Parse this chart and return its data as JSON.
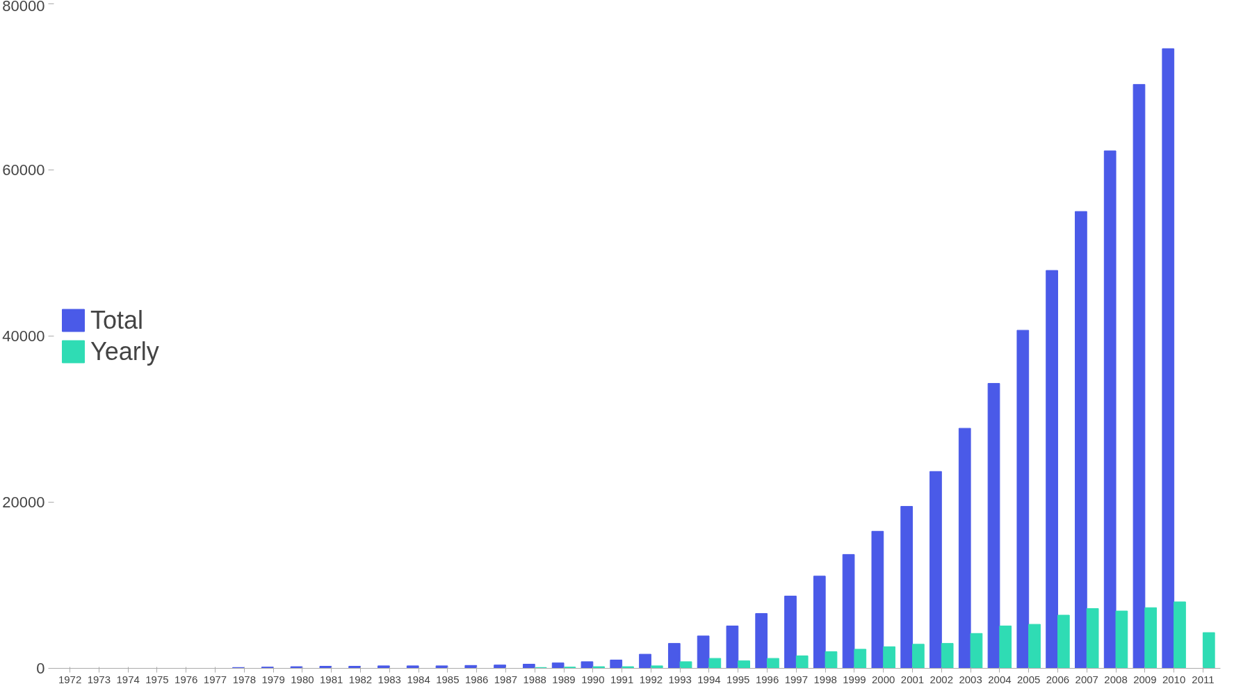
{
  "chart_data": {
    "type": "bar",
    "categories": [
      "1972",
      "1973",
      "1974",
      "1975",
      "1976",
      "1977",
      "1978",
      "1979",
      "1980",
      "1981",
      "1982",
      "1983",
      "1984",
      "1985",
      "1986",
      "1987",
      "1988",
      "1989",
      "1990",
      "1991",
      "1992",
      "1993",
      "1994",
      "1995",
      "1996",
      "1997",
      "1998",
      "1999",
      "2000",
      "2001",
      "2002",
      "2003",
      "2004",
      "2005",
      "2006",
      "2007",
      "2008",
      "2009",
      "2010",
      "2011"
    ],
    "series": [
      {
        "name": "Total",
        "color": "#4a5ae8",
        "values": [
          0,
          0,
          0,
          0,
          0,
          0,
          100,
          150,
          200,
          250,
          250,
          300,
          300,
          300,
          350,
          400,
          500,
          650,
          800,
          1000,
          1700,
          3000,
          3900,
          5100,
          6600,
          8700,
          11100,
          13700,
          16500,
          19500,
          23700,
          28900,
          34300,
          40700,
          47900,
          55000,
          62300,
          70300,
          74600,
          null
        ]
      },
      {
        "name": "Yearly",
        "color": "#2fdcb4",
        "values": [
          0,
          0,
          0,
          0,
          0,
          0,
          0,
          0,
          0,
          0,
          0,
          0,
          0,
          0,
          0,
          0,
          100,
          150,
          200,
          200,
          300,
          800,
          1200,
          900,
          1200,
          1500,
          2000,
          2300,
          2600,
          2900,
          3000,
          4200,
          5100,
          5300,
          6400,
          7200,
          6900,
          7300,
          8000,
          4300
        ]
      }
    ],
    "ylim": [
      0,
      80000
    ],
    "yticks": [
      0,
      20000,
      40000,
      60000,
      80000
    ],
    "grid": false,
    "legend": "left"
  }
}
